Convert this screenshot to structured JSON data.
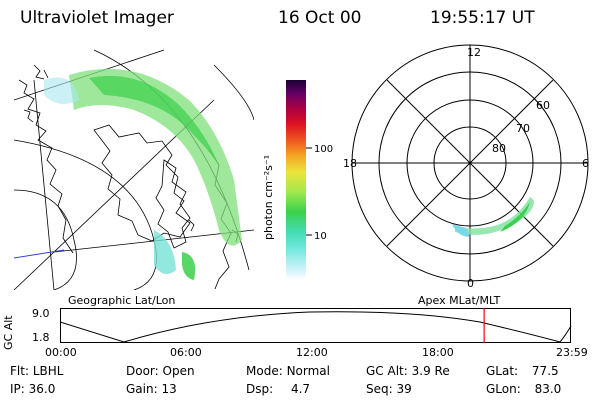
{
  "header": {
    "title": "Ultraviolet Imager",
    "date": "16 Oct 00",
    "time": "19:55:17 UT"
  },
  "colorbar": {
    "label": "photon cm⁻²s⁻¹",
    "ticks": [
      "100",
      "10"
    ]
  },
  "polar": {
    "mlt_labels": {
      "top": "12",
      "left": "18",
      "right": "6",
      "bottom": "0"
    },
    "lat_labels": [
      "60",
      "70",
      "80"
    ]
  },
  "timeline": {
    "left_label": "Geographic Lat/Lon",
    "right_label": "Apex MLat/MLT",
    "axis_title": "GC Alt",
    "y_ticks": [
      "9.0",
      "1.8"
    ],
    "x_ticks": [
      "00:00",
      "06:00",
      "12:00",
      "18:00",
      "23:59"
    ],
    "current_hour": 19.92,
    "marker_color": "#ff0000"
  },
  "info": {
    "row1": [
      {
        "label": "Flt:",
        "value": "LBHL"
      },
      {
        "label": "Door:",
        "value": "Open"
      },
      {
        "label": "Mode:",
        "value": "Normal"
      },
      {
        "label": "GC Alt:",
        "value": "3.9 Re"
      },
      {
        "label": "GLat:",
        "value": "77.5"
      }
    ],
    "row2": [
      {
        "label": "IP:",
        "value": "36.0"
      },
      {
        "label": "Gain:",
        "value": "13"
      },
      {
        "label": "Dsp:",
        "value": "4.7"
      },
      {
        "label": "Seq:",
        "value": "39"
      },
      {
        "label": "GLon:",
        "value": "83.0"
      }
    ]
  }
}
